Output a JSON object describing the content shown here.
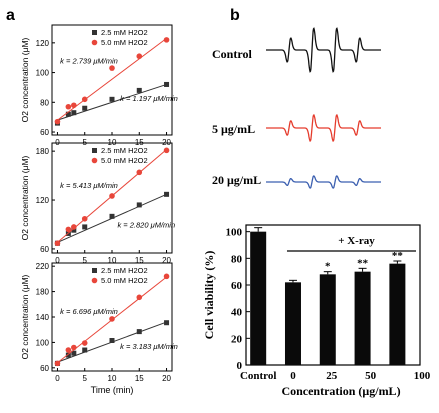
{
  "panel_labels": {
    "a": "a",
    "b": "b"
  },
  "colors": {
    "black": "#111111",
    "red": "#e53b2c",
    "blue": "#3b5fb0",
    "gray_series": "#333333",
    "red_series": "#e8463a"
  },
  "chart_data": [
    {
      "type": "scatter",
      "panel": "a-top",
      "ylabel": "O2 concentration (μM)",
      "xlabel": "",
      "xlim": [
        -1,
        21
      ],
      "ylim": [
        58,
        132
      ],
      "yticks": [
        60,
        80,
        100,
        120
      ],
      "xticks": [
        0,
        5,
        10,
        15,
        20
      ],
      "x": [
        0,
        2,
        3,
        5,
        10,
        15,
        20
      ],
      "series": [
        {
          "name": "2.5 mM H2O2",
          "color": "#333333",
          "marker": "square",
          "y": [
            66,
            72,
            73,
            76,
            82,
            88,
            92
          ],
          "fit": [
            68,
            92
          ]
        },
        {
          "name": "5.0 mM H2O2",
          "color": "#e8463a",
          "marker": "circle",
          "y": [
            67,
            77,
            78,
            82,
            103,
            111,
            122
          ],
          "fit": [
            68,
            123
          ]
        }
      ],
      "annotations": [
        {
          "text": "k = 2.739 μM/min",
          "x": 0.5,
          "y": 106
        },
        {
          "text": "k = 1.197 μM/min",
          "x": 11.5,
          "y": 81
        }
      ]
    },
    {
      "type": "scatter",
      "panel": "a-mid",
      "ylabel": "O2 concentration (μM)",
      "xlabel": "",
      "xlim": [
        -1,
        21
      ],
      "ylim": [
        55,
        190
      ],
      "yticks": [
        60,
        120,
        180
      ],
      "xticks": [
        0,
        5,
        10,
        15,
        20
      ],
      "x": [
        0,
        2,
        3,
        5,
        10,
        15,
        20
      ],
      "series": [
        {
          "name": "2.5 mM H2O2",
          "color": "#333333",
          "marker": "square",
          "y": [
            67,
            79,
            83,
            87,
            100,
            114,
            127
          ],
          "fit": [
            68,
            127
          ]
        },
        {
          "name": "5.0 mM H2O2",
          "color": "#e8463a",
          "marker": "circle",
          "y": [
            67,
            84,
            87,
            97,
            125,
            154,
            181
          ],
          "fit": [
            68,
            182
          ]
        }
      ],
      "annotations": [
        {
          "text": "k = 5.413 μM/min",
          "x": 0.5,
          "y": 135
        },
        {
          "text": "k = 2.820 μM/min",
          "x": 11,
          "y": 86
        }
      ]
    },
    {
      "type": "scatter",
      "panel": "a-bottom",
      "ylabel": "O2 concentration (μM)",
      "xlabel": "Time (min)",
      "xlim": [
        -1,
        21
      ],
      "ylim": [
        55,
        225
      ],
      "yticks": [
        60,
        100,
        140,
        180,
        220
      ],
      "xticks": [
        0,
        5,
        10,
        15,
        20
      ],
      "x": [
        0,
        2,
        3,
        5,
        10,
        15,
        20
      ],
      "series": [
        {
          "name": "2.5 mM H2O2",
          "color": "#333333",
          "marker": "square",
          "y": [
            67,
            80,
            83,
            88,
            103,
            117,
            131
          ],
          "fit": [
            69,
            132
          ]
        },
        {
          "name": "5.0 mM H2O2",
          "color": "#e8463a",
          "marker": "circle",
          "y": [
            67,
            88,
            92,
            99,
            137,
            171,
            204
          ],
          "fit": [
            68,
            203
          ]
        }
      ],
      "annotations": [
        {
          "text": "k = 6.696 μM/min",
          "x": 0.5,
          "y": 145
        },
        {
          "text": "k = 3.183 μM/min",
          "x": 11.5,
          "y": 90
        }
      ]
    },
    {
      "type": "line",
      "panel": "b-epr",
      "traces": [
        {
          "name": "Control",
          "color": "#111111",
          "amplitude": 1.0
        },
        {
          "name": "5 μg/mL",
          "color": "#e53b2c",
          "amplitude": 0.6
        },
        {
          "name": "20 μg/mL",
          "color": "#3b5fb0",
          "amplitude": 0.28
        }
      ]
    },
    {
      "type": "bar",
      "panel": "b-viability",
      "ylabel": "Cell viability (%)",
      "xlabel": "Concentration (μg/mL)",
      "categories": [
        "Control",
        "0",
        "25",
        "50",
        "100"
      ],
      "values": [
        100,
        62,
        68,
        70,
        76
      ],
      "errors": [
        3,
        1.5,
        2,
        2.5,
        2
      ],
      "significance": [
        "",
        "",
        "*",
        "**",
        "**"
      ],
      "ylim": [
        0,
        105
      ],
      "yticks": [
        0,
        20,
        40,
        60,
        80,
        100
      ],
      "treatment_label": "+ X-ray"
    }
  ]
}
